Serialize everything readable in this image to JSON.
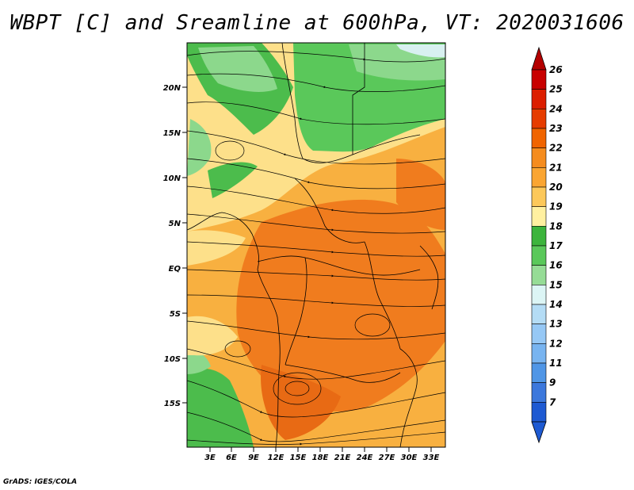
{
  "title": "WBPT [C] and Sreamline at 600hPa, VT: 2020031606",
  "credit": "GrADS: IGES/COLA",
  "map": {
    "variable": "Wet-bulb potential temperature",
    "level": "600hPa",
    "valid_time": "2020031606",
    "lat_labels": [
      "20N",
      "15N",
      "10N",
      "5N",
      "EQ",
      "5S",
      "10S",
      "15S"
    ],
    "lat_values": [
      20,
      15,
      10,
      5,
      0,
      -5,
      -10,
      -15
    ],
    "lon_labels": [
      "3E",
      "6E",
      "9E",
      "12E",
      "15E",
      "18E",
      "21E",
      "24E",
      "27E",
      "30E",
      "33E"
    ],
    "lon_values": [
      3,
      6,
      9,
      12,
      15,
      18,
      21,
      24,
      27,
      30,
      33
    ]
  },
  "colorbar": {
    "labels": [
      "26",
      "25",
      "24",
      "23",
      "22",
      "21",
      "20",
      "19",
      "18",
      "17",
      "16",
      "15",
      "14",
      "13",
      "12",
      "11",
      "9",
      "7"
    ],
    "colors": [
      "#c80000",
      "#dc1e00",
      "#e63c00",
      "#f06400",
      "#f58c1e",
      "#faa532",
      "#fcc85a",
      "#fff0a0",
      "#3cb43c",
      "#5ac85a",
      "#96dc96",
      "#dcf5f5",
      "#b4dcf5",
      "#96c8f5",
      "#78b4f0",
      "#5096e6",
      "#3c78dc",
      "#1e5ad2"
    ],
    "top_arrow_color": "#b40000",
    "bottom_arrow_color": "#1e5ad2"
  },
  "palette": {
    "warm_orange": "#f07c1e",
    "light_orange": "#f8b040",
    "yellow": "#fde08a",
    "pale_yellow": "#fff0a8",
    "green": "#4cbc4c",
    "light_green": "#8cd88c",
    "pale_blue": "#d8f0f0"
  }
}
